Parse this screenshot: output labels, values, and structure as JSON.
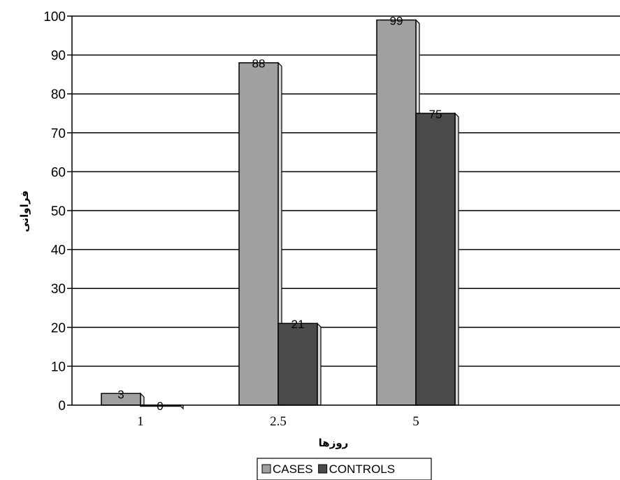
{
  "chart_data": {
    "type": "bar",
    "categories": [
      "1",
      "2.5",
      "5"
    ],
    "series": [
      {
        "name": "CASES",
        "values": [
          3,
          88,
          99
        ],
        "color": "#a0a0a0"
      },
      {
        "name": "CONTROLS",
        "values": [
          0,
          21,
          75
        ],
        "color": "#4a4a4a"
      }
    ],
    "xlabel": "روزها",
    "ylabel": "فراوانی",
    "ylim": [
      0,
      100
    ],
    "yticks": [
      0,
      10,
      20,
      30,
      40,
      50,
      60,
      70,
      80,
      90,
      100
    ],
    "grid": true,
    "legend_position": "bottom-center"
  }
}
